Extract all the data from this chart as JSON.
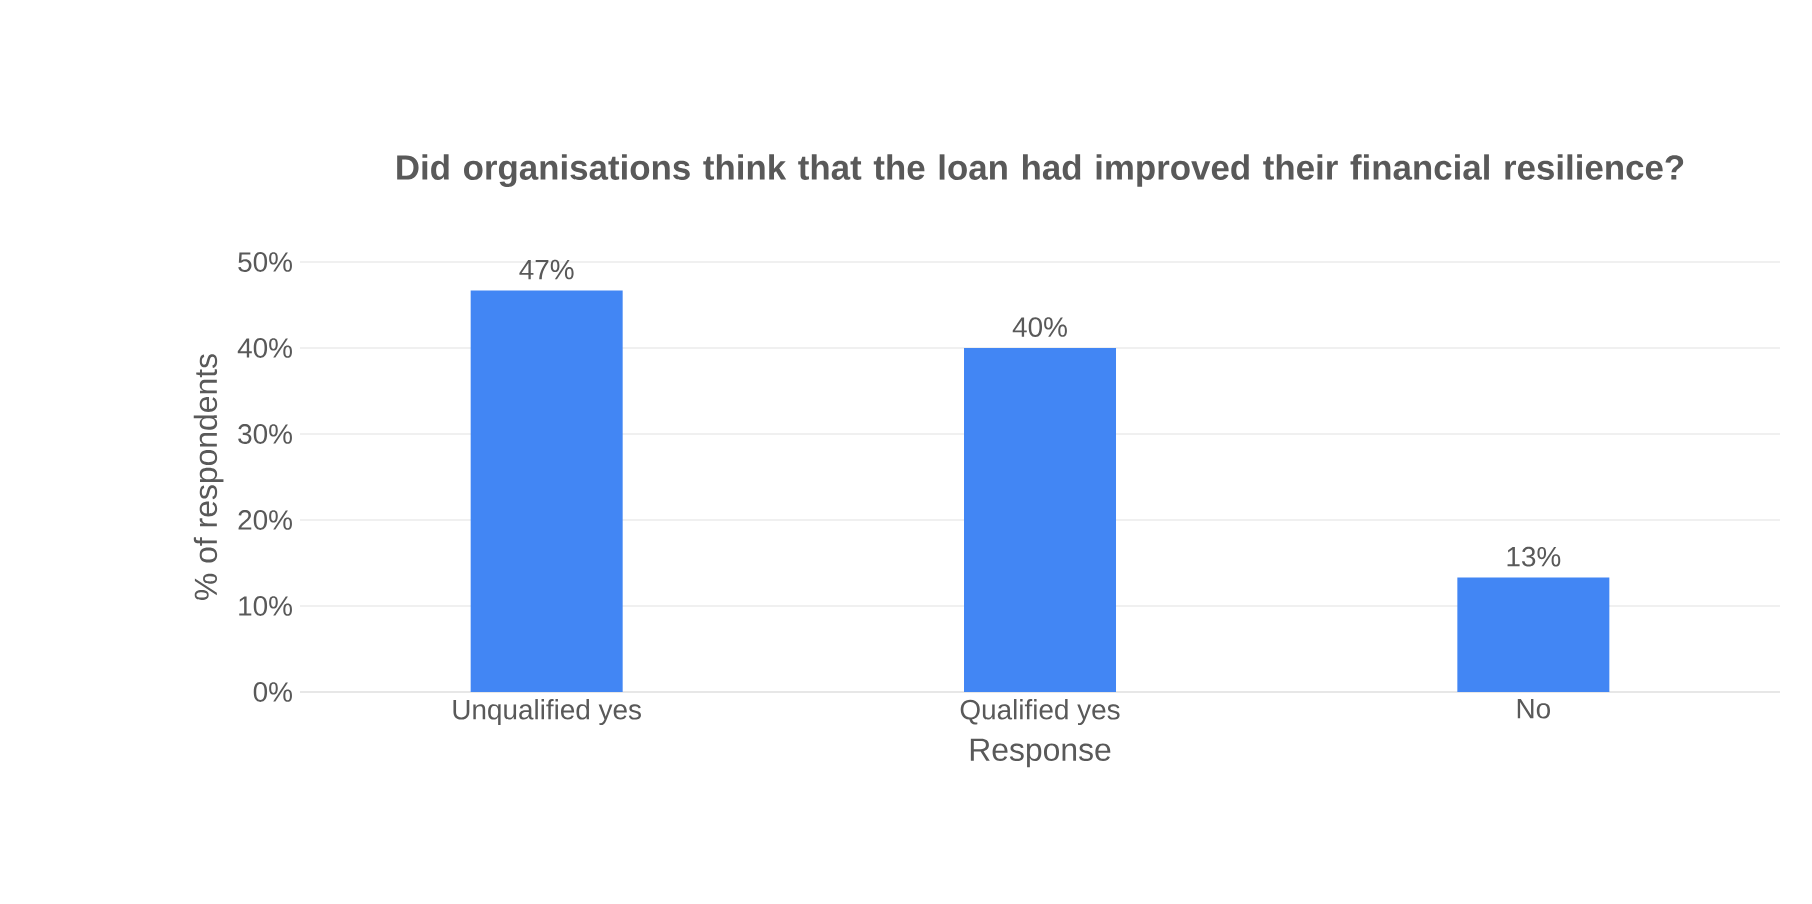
{
  "chart_data": {
    "type": "bar",
    "title": "Did organisations think that the loan had improved their financial resilience?",
    "xlabel": "Response",
    "ylabel": "% of  respondents",
    "categories": [
      "Unqualified yes",
      "Qualified yes",
      "No"
    ],
    "values": [
      46.7,
      40,
      13.3
    ],
    "value_labels": [
      "47%",
      "40%",
      "13%"
    ],
    "color": "#4286f4",
    "ylim": [
      0,
      50
    ],
    "yticks": [
      {
        "value": 0,
        "label": "0%"
      },
      {
        "value": 10,
        "label": "10%"
      },
      {
        "value": 20,
        "label": "20%"
      },
      {
        "value": 30,
        "label": "30%"
      },
      {
        "value": 40,
        "label": "40%"
      },
      {
        "value": 50,
        "label": "50%"
      }
    ],
    "grid": "y"
  }
}
